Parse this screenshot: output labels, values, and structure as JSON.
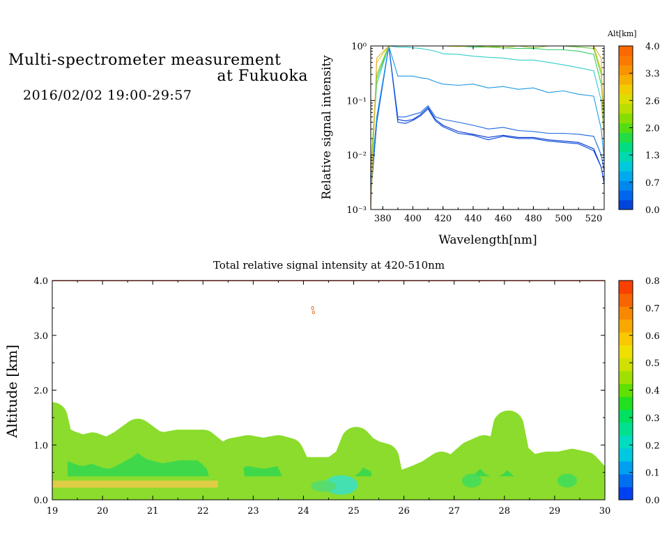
{
  "header": {
    "title_line1": "Multi-spectrometer measurement",
    "title_line2": "at Fukuoka",
    "date_range": "2016/02/02 19:00-29:57"
  },
  "chart_data": [
    {
      "type": "line",
      "xlabel": "Wavelength[nm]",
      "ylabel": "Relative signal intensity",
      "yscale": "log",
      "xlim": [
        372,
        527
      ],
      "ylim": [
        0.001,
        1
      ],
      "xticks": [
        "380",
        "400",
        "420",
        "440",
        "460",
        "480",
        "500",
        "520"
      ],
      "yticks": [
        "10⁻³",
        "10⁻²",
        "10⁻¹",
        "10⁰"
      ],
      "x": [
        372,
        376,
        384,
        390,
        395,
        400,
        405,
        410,
        415,
        420,
        430,
        440,
        450,
        460,
        470,
        480,
        490,
        500,
        510,
        520,
        525,
        527
      ],
      "series": [
        {
          "color": "#0033cc",
          "values": [
            0.0018,
            0.04,
            1,
            0.045,
            0.042,
            0.045,
            0.055,
            0.075,
            0.045,
            0.035,
            0.027,
            0.024,
            0.021,
            0.023,
            0.021,
            0.021,
            0.019,
            0.018,
            0.017,
            0.013,
            0.006,
            0.003
          ]
        },
        {
          "color": "#0044dd",
          "values": [
            0.0018,
            0.04,
            1,
            0.04,
            0.038,
            0.043,
            0.052,
            0.07,
            0.042,
            0.033,
            0.025,
            0.023,
            0.019,
            0.022,
            0.02,
            0.02,
            0.018,
            0.017,
            0.016,
            0.012,
            0.006,
            0.003
          ]
        },
        {
          "color": "#1a66e0",
          "values": [
            0.002,
            0.04,
            1,
            0.05,
            0.05,
            0.055,
            0.06,
            0.08,
            0.05,
            0.045,
            0.04,
            0.035,
            0.03,
            0.032,
            0.028,
            0.027,
            0.025,
            0.025,
            0.024,
            0.022,
            0.01,
            0.005
          ]
        },
        {
          "color": "#1a99e6",
          "values": [
            0.003,
            0.05,
            1,
            0.28,
            0.28,
            0.28,
            0.26,
            0.25,
            0.22,
            0.2,
            0.19,
            0.2,
            0.17,
            0.18,
            0.16,
            0.17,
            0.14,
            0.15,
            0.13,
            0.12,
            0.03,
            0.008
          ]
        },
        {
          "color": "#33cccc",
          "values": [
            0.005,
            0.2,
            1,
            0.95,
            0.95,
            0.92,
            0.9,
            0.85,
            0.8,
            0.72,
            0.7,
            0.65,
            0.62,
            0.6,
            0.55,
            0.55,
            0.5,
            0.45,
            0.4,
            0.35,
            0.1,
            0.02
          ]
        },
        {
          "color": "#33cc66",
          "values": [
            0.005,
            0.25,
            1,
            1,
            1,
            1,
            1,
            1,
            1,
            1,
            1,
            0.95,
            0.95,
            0.92,
            0.9,
            0.9,
            0.85,
            0.85,
            0.8,
            0.7,
            0.2,
            0.05
          ]
        },
        {
          "color": "#66cc33",
          "values": [
            0.005,
            0.3,
            1,
            1,
            1,
            1,
            1,
            1,
            1,
            1,
            1,
            1,
            1,
            1,
            1,
            1,
            1,
            1,
            0.95,
            0.9,
            0.3,
            0.05
          ]
        },
        {
          "color": "#99cc33",
          "values": [
            0.005,
            0.3,
            1,
            1,
            1,
            1,
            1,
            1,
            1,
            1,
            1,
            1,
            0.95,
            1,
            1,
            0.92,
            1,
            1,
            1,
            1,
            0.3,
            0.02
          ]
        },
        {
          "color": "#ccd633",
          "values": [
            0.001,
            0.5,
            1,
            1,
            1,
            1,
            1,
            1,
            1,
            1,
            0.97,
            1,
            1,
            0.93,
            1,
            1,
            1,
            1,
            1,
            1,
            0.35,
            0.01
          ]
        },
        {
          "color": "#e6b030",
          "values": [
            0.001,
            0.6,
            1,
            1,
            1,
            1,
            1,
            1,
            1,
            1,
            1,
            1,
            1,
            1,
            1,
            1,
            1,
            1,
            1,
            1,
            0.6,
            0.01
          ]
        }
      ],
      "legend": {
        "title": "Alt[km]",
        "ticks": [
          "0.0",
          "0.7",
          "1.3",
          "2.0",
          "2.6",
          "3.3",
          "4.0"
        ],
        "colors": [
          "#0044dd",
          "#0066ee",
          "#0088ee",
          "#00aaee",
          "#00c8dd",
          "#00d8b0",
          "#00dd80",
          "#22dd44",
          "#55dd11",
          "#88dd00",
          "#bbdd00",
          "#dddd00",
          "#f0cc00",
          "#f6b000",
          "#f89400",
          "#fa7a00",
          "#fc6800"
        ]
      }
    },
    {
      "type": "heatmap",
      "title": "Total relative signal intensity at 420-510nm",
      "xlabel": "",
      "ylabel": "Altitude [km]",
      "xlim": [
        19,
        30
      ],
      "ylim": [
        0,
        4
      ],
      "xticks": [
        "19",
        "20",
        "21",
        "22",
        "23",
        "24",
        "25",
        "26",
        "27",
        "28",
        "29",
        "30"
      ],
      "yticks": [
        "0.0",
        "1.0",
        "2.0",
        "3.0",
        "4.0"
      ],
      "regions": [
        {
          "name": "segment-1",
          "points": [
            [
              19.0,
              1.5
            ],
            [
              19.1,
              1.1
            ],
            [
              19.3,
              1.0
            ],
            [
              19.6,
              0.9
            ],
            [
              19.8,
              0.95
            ],
            [
              20.1,
              0.85
            ],
            [
              20.4,
              1.0
            ],
            [
              20.7,
              1.2
            ],
            [
              21.0,
              1.0
            ],
            [
              21.2,
              0.95
            ],
            [
              21.5,
              1.0
            ],
            [
              21.8,
              1.0
            ],
            [
              22.0,
              1.0
            ],
            [
              22.2,
              0.85
            ],
            [
              22.35,
              0.7
            ],
            [
              22.45,
              0.4
            ],
            [
              22.35,
              0.15
            ],
            [
              19.0,
              0.15
            ]
          ]
        },
        {
          "name": "segment-2",
          "points": [
            [
              22.6,
              0.85
            ],
            [
              22.9,
              0.9
            ],
            [
              23.2,
              0.85
            ],
            [
              23.5,
              0.9
            ],
            [
              23.7,
              0.85
            ],
            [
              23.85,
              0.55
            ],
            [
              24.0,
              0.5
            ],
            [
              24.2,
              0.5
            ],
            [
              24.6,
              0.5
            ],
            [
              24.9,
              0.7
            ],
            [
              25.05,
              1.05
            ],
            [
              25.2,
              0.9
            ],
            [
              25.4,
              0.8
            ],
            [
              25.6,
              0.75
            ],
            [
              25.7,
              0.3
            ],
            [
              25.7,
              0.15
            ],
            [
              22.55,
              0.15
            ],
            [
              22.5,
              0.6
            ]
          ]
        },
        {
          "name": "segment-3",
          "points": [
            [
              26.25,
              0.35
            ],
            [
              26.5,
              0.45
            ],
            [
              26.75,
              0.6
            ],
            [
              26.95,
              0.45
            ],
            [
              27.1,
              0.6
            ],
            [
              27.35,
              0.8
            ],
            [
              27.6,
              0.9
            ],
            [
              27.8,
              0.7
            ],
            [
              28.0,
              1.0
            ],
            [
              28.08,
              1.35
            ],
            [
              28.2,
              0.8
            ],
            [
              28.5,
              0.55
            ],
            [
              28.6,
              0.55
            ],
            [
              28.85,
              0.6
            ],
            [
              29.1,
              0.6
            ],
            [
              29.35,
              0.65
            ],
            [
              29.6,
              0.6
            ],
            [
              29.75,
              0.45
            ],
            [
              29.8,
              0.15
            ],
            [
              26.0,
              0.15
            ],
            [
              25.95,
              0.25
            ]
          ]
        }
      ],
      "top_line": 4.0,
      "spots": [
        [
          24.18,
          3.5
        ],
        [
          24.2,
          3.42
        ]
      ],
      "legend": {
        "ticks": [
          "0.0",
          "0.1",
          "0.2",
          "0.3",
          "0.4",
          "0.5",
          "0.6",
          "0.7",
          "0.8"
        ],
        "colors": [
          "#0040f0",
          "#0070f0",
          "#00a0f0",
          "#00c8e0",
          "#00dcc0",
          "#00e090",
          "#00e060",
          "#20e020",
          "#60e000",
          "#a0e000",
          "#d0e000",
          "#f0e000",
          "#f8c800",
          "#f8a800",
          "#f88800",
          "#f86400",
          "#f84000"
        ]
      }
    }
  ]
}
